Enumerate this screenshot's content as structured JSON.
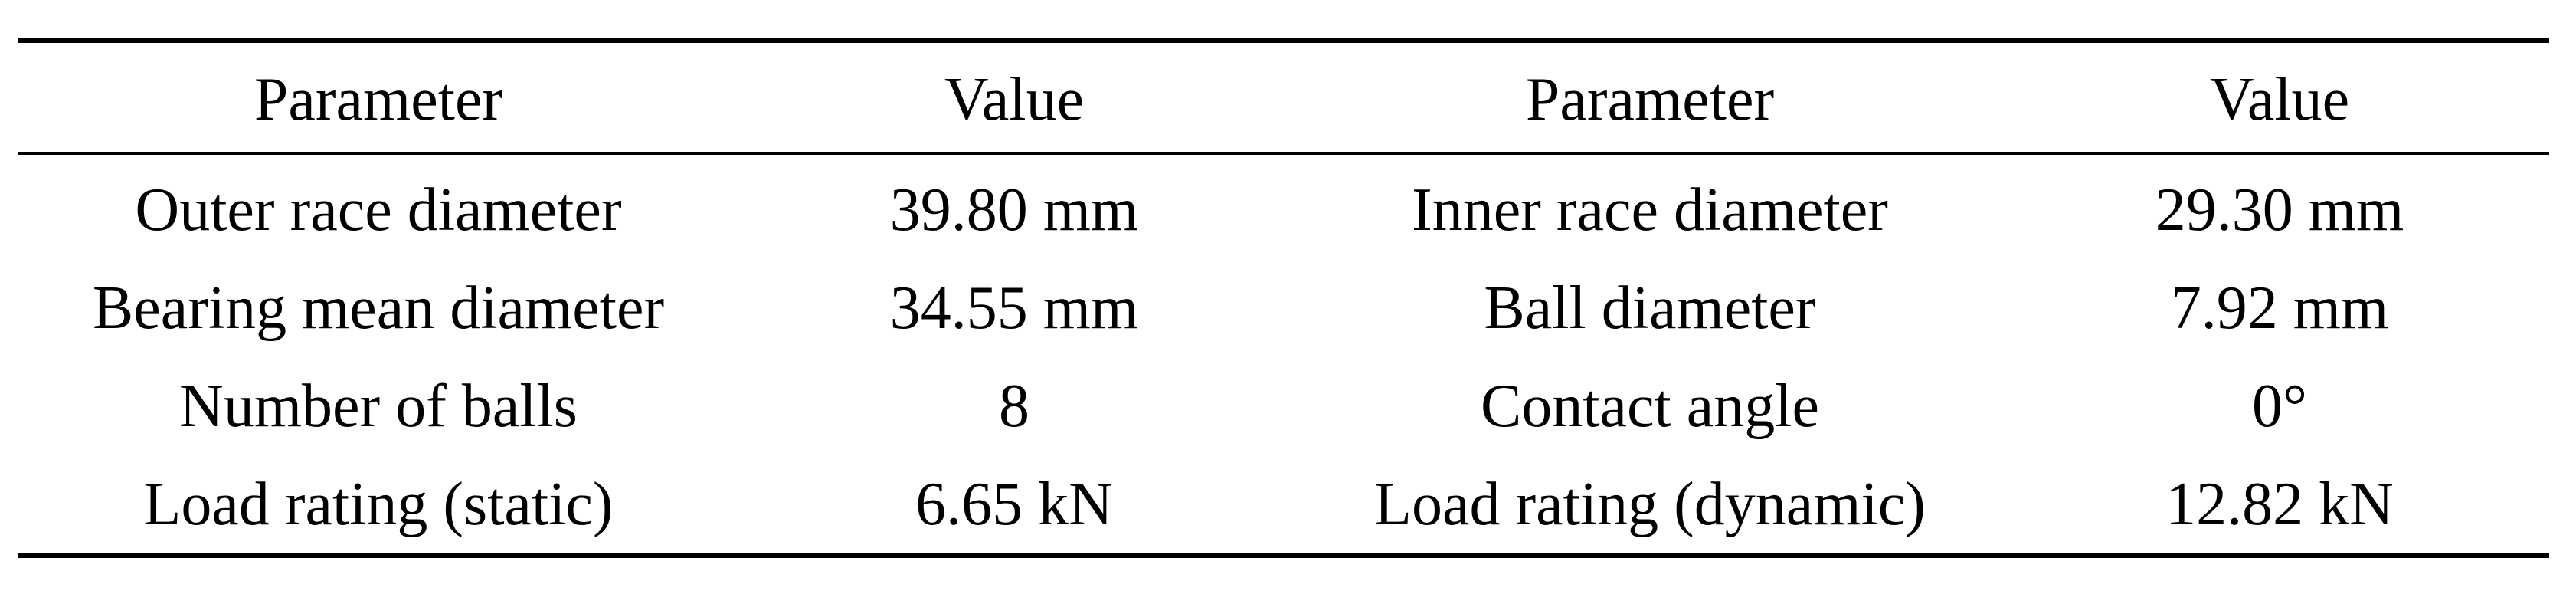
{
  "table": {
    "headers": [
      "Parameter",
      "Value",
      "Parameter",
      "Value"
    ],
    "rows": [
      [
        "Outer race diameter",
        "39.80 mm",
        "Inner race diameter",
        "29.30 mm"
      ],
      [
        "Bearing mean diameter",
        "34.55 mm",
        "Ball diameter",
        "7.92 mm"
      ],
      [
        "Number of balls",
        "8",
        "Contact angle",
        "0°"
      ],
      [
        "Load rating (static)",
        "6.65 kN",
        "Load rating (dynamic)",
        "12.82 kN"
      ]
    ]
  }
}
